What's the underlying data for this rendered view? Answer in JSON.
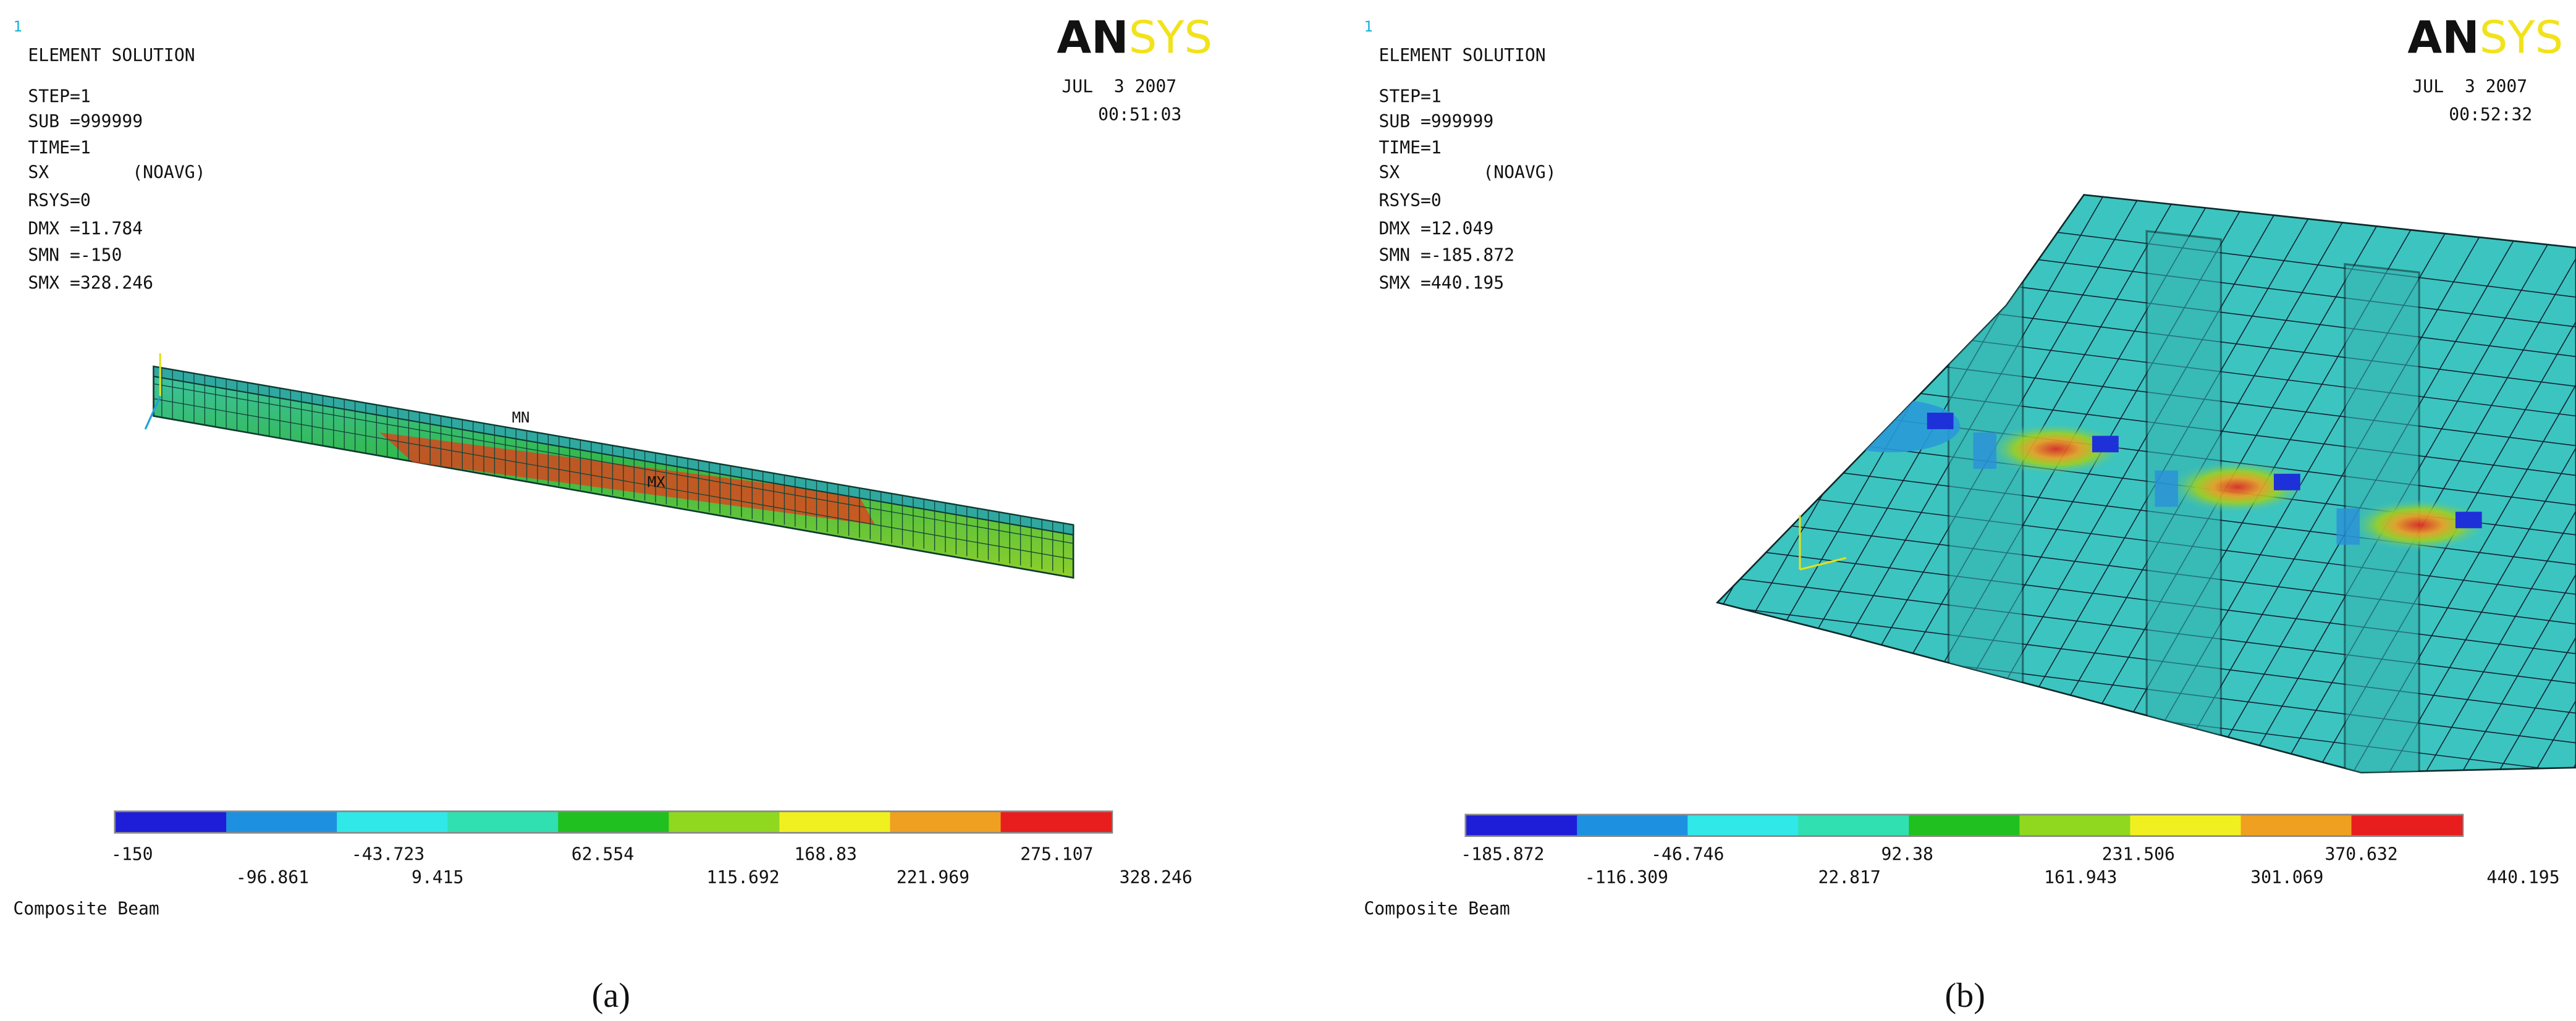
{
  "panels": [
    {
      "frame_number": "1",
      "title": "ELEMENT SOLUTION",
      "info_lines": [
        "STEP=1",
        "SUB =999999",
        "TIME=1",
        "SX        (NOAVG)",
        "RSYS=0",
        "DMX =11.784",
        "SMN =-150",
        "SMX =328.246"
      ],
      "logo": {
        "part1": "AN",
        "part2": "SYS"
      },
      "date": "JUL  3 2007",
      "time": "00:51:03",
      "model_labels": [
        "MN",
        "MX"
      ],
      "legend_values": [
        "-150",
        "-96.861",
        "-43.723",
        "9.415",
        "62.554",
        "115.692",
        "168.83",
        "221.969",
        "275.107",
        "328.246"
      ],
      "model_name": "Composite Beam",
      "caption": "(a)"
    },
    {
      "frame_number": "1",
      "title": "ELEMENT SOLUTION",
      "info_lines": [
        "STEP=1",
        "SUB =999999",
        "TIME=1",
        "SX        (NOAVG)",
        "RSYS=0",
        "DMX =12.049",
        "SMN =-185.872",
        "SMX =440.195"
      ],
      "logo": {
        "part1": "AN",
        "part2": "SYS"
      },
      "date": "JUL  3 2007",
      "time": "00:52:32",
      "legend_values": [
        "-185.872",
        "-116.309",
        "-46.746",
        "22.817",
        "92.38",
        "161.943",
        "231.506",
        "301.069",
        "370.632",
        "440.195"
      ],
      "model_name": "Composite Beam",
      "caption": "(b)"
    }
  ]
}
